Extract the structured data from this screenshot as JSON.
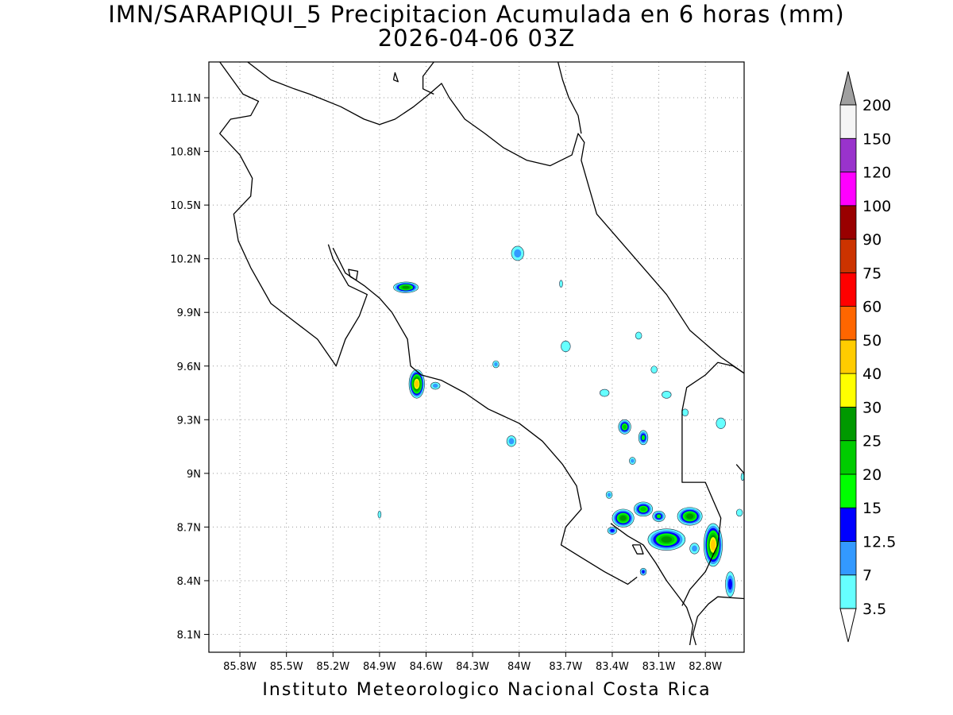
{
  "title": "IMN/SARAPIQUI_5 Precipitacion Acumulada en 6 horas (mm)",
  "subtitle": "2026-04-06 03Z",
  "credit": "Instituto Meteorologico Nacional Costa Rica",
  "map": {
    "lon_range": [
      -86.0,
      -82.55
    ],
    "lat_range": [
      8.0,
      11.3
    ],
    "grid": "dotted",
    "lat_ticks": [
      {
        "value": 11.1,
        "label": "11.1N"
      },
      {
        "value": 10.8,
        "label": "10.8N"
      },
      {
        "value": 10.5,
        "label": "10.5N"
      },
      {
        "value": 10.2,
        "label": "10.2N"
      },
      {
        "value": 9.9,
        "label": "9.9N"
      },
      {
        "value": 9.6,
        "label": "9.6N"
      },
      {
        "value": 9.3,
        "label": "9.3N"
      },
      {
        "value": 9.0,
        "label": "9N"
      },
      {
        "value": 8.7,
        "label": "8.7N"
      },
      {
        "value": 8.4,
        "label": "8.4N"
      },
      {
        "value": 8.1,
        "label": "8.1N"
      }
    ],
    "lon_ticks": [
      {
        "value": -85.8,
        "label": "85.8W"
      },
      {
        "value": -85.5,
        "label": "85.5W"
      },
      {
        "value": -85.2,
        "label": "85.2W"
      },
      {
        "value": -84.9,
        "label": "84.9W"
      },
      {
        "value": -84.6,
        "label": "84.6W"
      },
      {
        "value": -84.3,
        "label": "84.3W"
      },
      {
        "value": -84.0,
        "label": "84W"
      },
      {
        "value": -83.7,
        "label": "83.7W"
      },
      {
        "value": -83.4,
        "label": "83.4W"
      },
      {
        "value": -83.1,
        "label": "83.1W"
      },
      {
        "value": -82.8,
        "label": "82.8W"
      }
    ],
    "coastline_lonlat": [
      [
        [
          -85.93,
          11.3
        ],
        [
          -85.78,
          11.12
        ],
        [
          -85.68,
          11.08
        ],
        [
          -85.73,
          11.0
        ],
        [
          -85.86,
          10.98
        ],
        [
          -85.93,
          10.9
        ],
        [
          -85.8,
          10.78
        ],
        [
          -85.72,
          10.65
        ],
        [
          -85.73,
          10.55
        ],
        [
          -85.84,
          10.45
        ],
        [
          -85.81,
          10.3
        ],
        [
          -85.73,
          10.15
        ],
        [
          -85.6,
          9.95
        ],
        [
          -85.45,
          9.85
        ],
        [
          -85.3,
          9.75
        ],
        [
          -85.18,
          9.6
        ],
        [
          -85.12,
          9.75
        ],
        [
          -85.03,
          9.88
        ],
        [
          -84.98,
          10.0
        ],
        [
          -85.1,
          10.05
        ],
        [
          -85.2,
          10.2
        ],
        [
          -85.23,
          10.28
        ]
      ],
      [
        [
          -85.2,
          10.26
        ],
        [
          -85.12,
          10.12
        ],
        [
          -85.0,
          10.05
        ],
        [
          -84.9,
          9.98
        ],
        [
          -84.82,
          9.9
        ],
        [
          -84.72,
          9.75
        ],
        [
          -84.7,
          9.6
        ],
        [
          -84.63,
          9.55
        ],
        [
          -84.5,
          9.52
        ],
        [
          -84.35,
          9.45
        ],
        [
          -84.2,
          9.36
        ],
        [
          -84.0,
          9.28
        ],
        [
          -83.85,
          9.18
        ],
        [
          -83.72,
          9.05
        ],
        [
          -83.63,
          8.93
        ],
        [
          -83.6,
          8.8
        ],
        [
          -83.7,
          8.7
        ],
        [
          -83.73,
          8.6
        ],
        [
          -83.6,
          8.53
        ],
        [
          -83.45,
          8.45
        ],
        [
          -83.3,
          8.38
        ],
        [
          -83.24,
          8.42
        ]
      ],
      [
        [
          -83.41,
          8.72
        ],
        [
          -83.3,
          8.65
        ],
        [
          -83.2,
          8.6
        ],
        [
          -83.12,
          8.5
        ],
        [
          -83.05,
          8.4
        ],
        [
          -82.98,
          8.32
        ],
        [
          -82.92,
          8.25
        ],
        [
          -82.88,
          8.15
        ],
        [
          -82.9,
          8.04
        ]
      ],
      [
        [
          -82.86,
          8.04
        ],
        [
          -82.88,
          8.1
        ],
        [
          -82.85,
          8.2
        ],
        [
          -82.78,
          8.27
        ],
        [
          -82.72,
          8.31
        ],
        [
          -82.55,
          8.3
        ]
      ],
      [
        [
          -85.75,
          11.3
        ],
        [
          -85.6,
          11.2
        ],
        [
          -85.45,
          11.15
        ],
        [
          -85.35,
          11.12
        ],
        [
          -85.15,
          11.05
        ],
        [
          -85.0,
          10.98
        ],
        [
          -84.9,
          10.95
        ],
        [
          -84.8,
          10.98
        ],
        [
          -84.68,
          11.05
        ],
        [
          -84.58,
          11.12
        ],
        [
          -84.5,
          11.18
        ],
        [
          -84.45,
          11.1
        ],
        [
          -84.35,
          10.98
        ],
        [
          -84.22,
          10.9
        ],
        [
          -84.1,
          10.82
        ],
        [
          -83.95,
          10.75
        ],
        [
          -83.8,
          10.72
        ],
        [
          -83.66,
          10.78
        ],
        [
          -83.62,
          10.9
        ],
        [
          -83.58,
          10.85
        ],
        [
          -83.6,
          10.75
        ],
        [
          -83.55,
          10.6
        ],
        [
          -83.5,
          10.45
        ],
        [
          -83.35,
          10.3
        ],
        [
          -83.2,
          10.15
        ],
        [
          -83.05,
          10.0
        ],
        [
          -82.9,
          9.8
        ],
        [
          -82.7,
          9.65
        ],
        [
          -82.55,
          9.56
        ]
      ],
      [
        [
          -84.55,
          11.3
        ],
        [
          -84.62,
          11.22
        ],
        [
          -84.62,
          11.15
        ],
        [
          -84.55,
          11.12
        ]
      ],
      [
        [
          -83.75,
          11.3
        ],
        [
          -83.72,
          11.2
        ],
        [
          -83.68,
          11.1
        ],
        [
          -83.62,
          11.0
        ],
        [
          -83.6,
          10.9
        ]
      ],
      [
        [
          -82.55,
          9.56
        ],
        [
          -82.62,
          9.6
        ],
        [
          -82.72,
          9.62
        ],
        [
          -82.8,
          9.55
        ],
        [
          -82.92,
          9.48
        ],
        [
          -82.95,
          9.35
        ],
        [
          -82.95,
          9.1
        ],
        [
          -82.95,
          8.95
        ],
        [
          -82.8,
          8.95
        ],
        [
          -82.75,
          8.85
        ],
        [
          -82.7,
          8.75
        ],
        [
          -82.72,
          8.6
        ],
        [
          -82.8,
          8.45
        ],
        [
          -82.9,
          8.35
        ],
        [
          -82.95,
          8.26
        ]
      ],
      [
        [
          -82.55,
          9.0
        ],
        [
          -82.6,
          9.05
        ]
      ],
      [
        [
          -85.09,
          10.1
        ],
        [
          -85.05,
          10.08
        ],
        [
          -85.04,
          10.13
        ],
        [
          -85.1,
          10.14
        ],
        [
          -85.09,
          10.1
        ]
      ],
      [
        [
          -84.81,
          11.2
        ],
        [
          -84.78,
          11.19
        ],
        [
          -84.8,
          11.24
        ],
        [
          -84.81,
          11.2
        ]
      ],
      [
        [
          -83.27,
          8.6
        ],
        [
          -83.24,
          8.55
        ],
        [
          -83.2,
          8.55
        ],
        [
          -83.22,
          8.6
        ],
        [
          -83.27,
          8.6
        ]
      ]
    ]
  },
  "precip_cells": [
    {
      "lon": -84.73,
      "lat": 10.04,
      "rx": 0.08,
      "ry": 0.03,
      "max_mm": 25
    },
    {
      "lon": -84.66,
      "lat": 9.5,
      "rx": 0.05,
      "ry": 0.08,
      "max_mm": 40
    },
    {
      "lon": -84.54,
      "lat": 9.49,
      "rx": 0.03,
      "ry": 0.02,
      "max_mm": 7
    },
    {
      "lon": -84.01,
      "lat": 10.23,
      "rx": 0.04,
      "ry": 0.04,
      "max_mm": 7
    },
    {
      "lon": -83.32,
      "lat": 9.26,
      "rx": 0.04,
      "ry": 0.04,
      "max_mm": 20
    },
    {
      "lon": -83.2,
      "lat": 9.2,
      "rx": 0.03,
      "ry": 0.04,
      "max_mm": 15
    },
    {
      "lon": -83.33,
      "lat": 8.75,
      "rx": 0.07,
      "ry": 0.05,
      "max_mm": 25
    },
    {
      "lon": -83.2,
      "lat": 8.8,
      "rx": 0.06,
      "ry": 0.04,
      "max_mm": 20
    },
    {
      "lon": -83.05,
      "lat": 8.63,
      "rx": 0.12,
      "ry": 0.06,
      "max_mm": 25
    },
    {
      "lon": -82.9,
      "lat": 8.76,
      "rx": 0.08,
      "ry": 0.05,
      "max_mm": 25
    },
    {
      "lon": -82.75,
      "lat": 8.6,
      "rx": 0.06,
      "ry": 0.12,
      "max_mm": 40
    },
    {
      "lon": -82.64,
      "lat": 8.38,
      "rx": 0.03,
      "ry": 0.07,
      "max_mm": 12.5
    },
    {
      "lon": -83.1,
      "lat": 8.76,
      "rx": 0.04,
      "ry": 0.03,
      "max_mm": 15
    },
    {
      "lon": -83.4,
      "lat": 8.68,
      "rx": 0.03,
      "ry": 0.02,
      "max_mm": 12.5
    },
    {
      "lon": -83.2,
      "lat": 8.45,
      "rx": 0.02,
      "ry": 0.02,
      "max_mm": 12.5
    },
    {
      "lon": -84.05,
      "lat": 9.18,
      "rx": 0.03,
      "ry": 0.03,
      "max_mm": 7
    },
    {
      "lon": -83.45,
      "lat": 9.45,
      "rx": 0.03,
      "ry": 0.02,
      "max_mm": 3.5
    },
    {
      "lon": -83.05,
      "lat": 9.44,
      "rx": 0.03,
      "ry": 0.02,
      "max_mm": 3.5
    },
    {
      "lon": -83.27,
      "lat": 9.07,
      "rx": 0.02,
      "ry": 0.02,
      "max_mm": 7
    },
    {
      "lon": -83.42,
      "lat": 8.88,
      "rx": 0.02,
      "ry": 0.02,
      "max_mm": 7
    },
    {
      "lon": -83.7,
      "lat": 9.71,
      "rx": 0.03,
      "ry": 0.03,
      "max_mm": 3.5
    },
    {
      "lon": -83.23,
      "lat": 9.77,
      "rx": 0.02,
      "ry": 0.02,
      "max_mm": 3.5
    },
    {
      "lon": -83.13,
      "lat": 9.58,
      "rx": 0.02,
      "ry": 0.02,
      "max_mm": 3.5
    },
    {
      "lon": -82.93,
      "lat": 9.34,
      "rx": 0.02,
      "ry": 0.02,
      "max_mm": 3.5
    },
    {
      "lon": -82.7,
      "lat": 9.28,
      "rx": 0.03,
      "ry": 0.03,
      "max_mm": 3.5
    },
    {
      "lon": -84.15,
      "lat": 9.61,
      "rx": 0.02,
      "ry": 0.02,
      "max_mm": 7
    },
    {
      "lon": -84.9,
      "lat": 8.77,
      "rx": 0.01,
      "ry": 0.02,
      "max_mm": 3.5
    },
    {
      "lon": -83.73,
      "lat": 10.06,
      "rx": 0.01,
      "ry": 0.02,
      "max_mm": 3.5
    },
    {
      "lon": -82.58,
      "lat": 8.78,
      "rx": 0.02,
      "ry": 0.02,
      "max_mm": 3.5
    },
    {
      "lon": -82.56,
      "lat": 8.98,
      "rx": 0.01,
      "ry": 0.02,
      "max_mm": 3.5
    },
    {
      "lon": -82.87,
      "lat": 8.58,
      "rx": 0.03,
      "ry": 0.03,
      "max_mm": 7
    }
  ],
  "colorbar": {
    "levels": [
      "3.5",
      "7",
      "12.5",
      "15",
      "20",
      "25",
      "30",
      "40",
      "50",
      "60",
      "75",
      "90",
      "100",
      "120",
      "150",
      "200"
    ],
    "bin_colors": [
      "#66ffff",
      "#3399ff",
      "#0000ff",
      "#00ff00",
      "#00cc00",
      "#009900",
      "#ffff00",
      "#ffcc00",
      "#ff6600",
      "#ff0000",
      "#cc3300",
      "#990000",
      "#ff00ff",
      "#9933cc",
      "#f5f5f5"
    ],
    "over_color": "#a0a0a0",
    "under_color": "#ffffff"
  },
  "colors": {
    "coastline": "#000000",
    "gridline": "#999999",
    "frame": "#000000"
  }
}
